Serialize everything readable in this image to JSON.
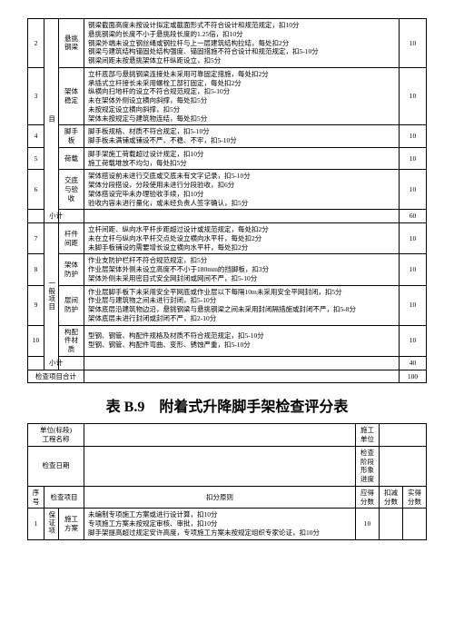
{
  "main_table": {
    "row_continuation": {
      "cat_label": "目"
    },
    "rows": [
      {
        "num": "2",
        "item": "悬挑钢梁",
        "details": "钢梁截面高度未按设计拟定或截面形式不符合设计和规范规定，扣10分\n悬挑钢梁的长度不小于悬挑段长度的1.25倍，扣10分\n钢梁外端未设立钢丝绳或钢拉杆与上一层建筑结构拉结，每处扣2分\n钢梁与建筑结构锚固处结构强度、锚固措施不符合设计和规范规定，扣5-10分\n钢梁间距未按悬挑架体立杆纵距设立，扣5分",
        "score": "10"
      },
      {
        "num": "3",
        "item": "架体稳定",
        "details": "立杆底部与悬挑钢梁连接处未采用可靠固定措施，每处扣2分\n承插式立杆接长未采用螺栓工部钉固定，每处扣2分\n纵横向扫地杆的设立不符合规范规定，扣5-10分\n未在架体外侧设立横向斜撑，每处扣5分\n未按规定设立横向斜撑，扣5分\n架体未按规定与建筑物连结，每处扣5分",
        "score": "10"
      },
      {
        "num": "4",
        "item": "脚手板",
        "details": "脚手板规格、材质不符合规定，扣5-10分\n脚手板未满铺或铺设不严、不稳、不牢，扣5-10分",
        "score": "10"
      },
      {
        "num": "5",
        "item": "荷载",
        "details": "脚手架施工荷载超过设计规定，扣10分\n施工荷载堆放不均匀，每处扣5分",
        "score": "10"
      },
      {
        "num": "6",
        "item": "交底与验收",
        "details": "架体搭设前未进行交底或交底未有文字记录，扣5-10分\n架体分段搭设，分段使用未进行分段验收，扣6分\n架体搭设完毕未办理验收手续，扣10分\n验收内容未进行量化，或未经负责人签字确认，扣5分",
        "score": "10"
      }
    ],
    "subtotal1": {
      "label": "小计",
      "score": "60"
    },
    "general_rows_label": "一般项目",
    "general_rows": [
      {
        "num": "7",
        "item": "杆件间距",
        "details": "立杆间距、纵向水平杆步距超过设计或规范规定，每处扣2分\n未在立杆与纵向水平杆交点处设立横向水平杆，每处扣2分\n未脚手板铺设的需要增长设立横向水平杆，每处扣2分",
        "score": "10"
      },
      {
        "num": "8",
        "item": "架体防护",
        "details": "作业支防护栏杆不符合规范规定，扣5分\n作业层架体外侧未设立高度不不小于180mm的挡脚板，扣3分\n架体外侧未采用密目式安全网封闭或网间不严，扣5-10分",
        "score": "10"
      },
      {
        "num": "9",
        "item": "层间防护",
        "details": "作业层脚手板下未采用安全平网底或作业层以下每隔10m未采用安全平网封闭，扣5分\n作业层与建筑物之间未进行封闭，扣5-10分\n架体底层沿建筑物边沿，悬挑钢梁与悬挑钢梁之间未采用封闭隔措施或封闭不严，扣5-8分\n架体底层未进行封闭或封闭不严，扣2-10分",
        "score": "10"
      },
      {
        "num": "10",
        "item": "构配件材质",
        "details": "型钢、钢管、构配件规格及材质不符合规范规定，扣5-10分\n型钢、钢管、构配件弯曲、变形、锈蚀严重，扣5-10分",
        "score": "10"
      }
    ],
    "subtotal2": {
      "label": "小计",
      "score": "40"
    },
    "grand_total": {
      "label": "检查项目合计",
      "score": "100"
    }
  },
  "title": "表 B.9　附着式升降脚手架检查评分表",
  "second_table": {
    "header1": {
      "left_label1": "单位(标段)\n工程名称",
      "right_label1": "施工单位"
    },
    "header2": {
      "left_label": "检查日期",
      "mid_label": "检查阶段\n形象进度"
    },
    "columns": [
      "序号",
      "检查项目",
      "扣分原则",
      "应得分数",
      "扣减分数",
      "实得分数"
    ],
    "row1": {
      "num": "1",
      "cat": "保证项",
      "item": "施工方案",
      "details": "未编制专项施工方案或进行设计算，扣10分\n专项施工方案未按规定审核、审批，扣10分\n脚手架提高超过规定安许高度，专项施工方案未按规定组织专家论证，扣10分",
      "score": "10"
    }
  }
}
